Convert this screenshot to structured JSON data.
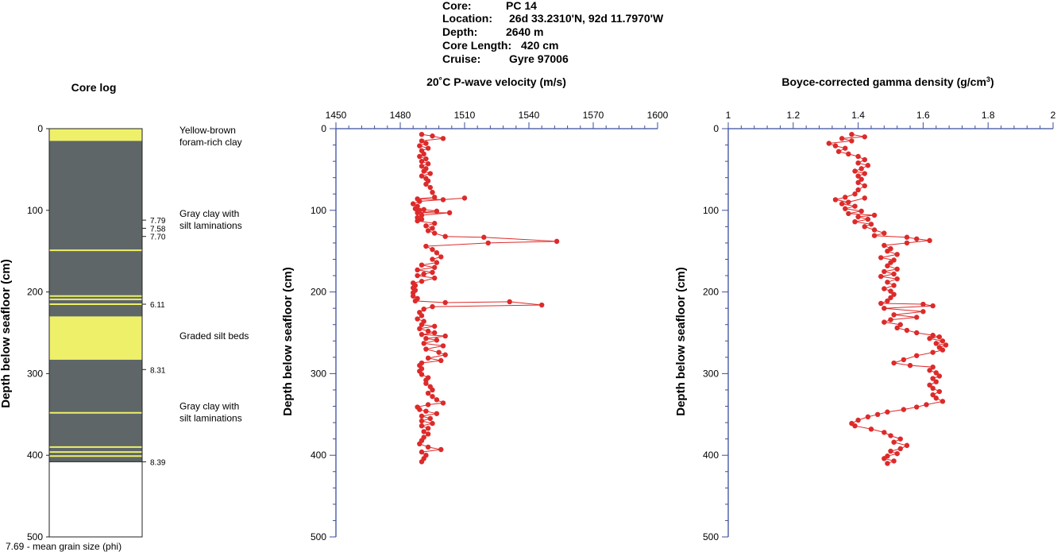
{
  "header": {
    "lines": [
      {
        "key": "Core:",
        "value": "PC 14"
      },
      {
        "key": "Location:",
        "value": "26d 33.2310'N, 92d 11.7970'W"
      },
      {
        "key": "Depth:",
        "value": "2640 m"
      },
      {
        "key": "Core Length:",
        "value": "420 cm"
      },
      {
        "key": "Cruise:",
        "value": "Gyre 97006"
      }
    ]
  },
  "chart_data": [
    {
      "type": "table",
      "title": "Core log",
      "ylabel": "Depth below seafloor (cm)",
      "ylim": [
        0,
        500
      ],
      "yticks": [
        0,
        100,
        200,
        300,
        400,
        500
      ],
      "core_bottom": 408,
      "colors": {
        "clay": "#5f6668",
        "silt": "#eef06a",
        "background": "#ffffff"
      },
      "layers": [
        {
          "from": 0,
          "to": 15,
          "kind": "silt"
        },
        {
          "from": 15,
          "to": 230,
          "kind": "clay"
        },
        {
          "from": 230,
          "to": 283,
          "kind": "silt"
        },
        {
          "from": 283,
          "to": 408,
          "kind": "clay"
        }
      ],
      "thin_silt_lines": [
        149,
        205,
        209,
        215,
        348,
        390,
        396,
        401
      ],
      "descriptions": [
        {
          "depth": 2,
          "lines": [
            "Yellow-brown",
            "foram-rich clay"
          ]
        },
        {
          "depth": 104,
          "lines": [
            "Gray clay with",
            "silt laminations"
          ]
        },
        {
          "depth": 254,
          "lines": [
            "Graded silt beds"
          ]
        },
        {
          "depth": 340,
          "lines": [
            "Gray clay with",
            "silt laminations"
          ]
        }
      ],
      "grain_sizes": [
        {
          "depth": 112,
          "value": "7.79"
        },
        {
          "depth": 122,
          "value": "7.58"
        },
        {
          "depth": 132,
          "value": "7.70"
        },
        {
          "depth": 215,
          "value": "6.11"
        },
        {
          "depth": 295,
          "value": "8.31"
        },
        {
          "depth": 408,
          "value": "8.39"
        }
      ],
      "footnote": "7.69 - mean grain size (phi)"
    },
    {
      "type": "line",
      "title_main": "20˚C P-wave velocity (m/s)",
      "ylabel": "Depth below seafloor (cm)",
      "xlim": [
        1450,
        1600
      ],
      "xticks": [
        1450,
        1480,
        1510,
        1540,
        1570,
        1600
      ],
      "ylim": [
        0,
        500
      ],
      "yticks": [
        0,
        100,
        200,
        300,
        400,
        500
      ],
      "color": "#dd2a2a",
      "axis_color": "#3a4e9e",
      "points": [
        [
          1490,
          7
        ],
        [
          1495,
          9
        ],
        [
          1500,
          12
        ],
        [
          1490,
          15
        ],
        [
          1492,
          18
        ],
        [
          1489,
          21
        ],
        [
          1493,
          24
        ],
        [
          1490,
          27
        ],
        [
          1491,
          31
        ],
        [
          1489,
          34
        ],
        [
          1492,
          37
        ],
        [
          1490,
          40
        ],
        [
          1493,
          43
        ],
        [
          1490,
          46
        ],
        [
          1492,
          49
        ],
        [
          1491,
          52
        ],
        [
          1494,
          55
        ],
        [
          1490,
          58
        ],
        [
          1492,
          61
        ],
        [
          1493,
          64
        ],
        [
          1492,
          68
        ],
        [
          1494,
          72
        ],
        [
          1495,
          78
        ],
        [
          1496,
          84
        ],
        [
          1488,
          86
        ],
        [
          1500,
          87
        ],
        [
          1510,
          85
        ],
        [
          1489,
          89
        ],
        [
          1486,
          92
        ],
        [
          1488,
          95
        ],
        [
          1487,
          98
        ],
        [
          1489,
          100
        ],
        [
          1491,
          99
        ],
        [
          1497,
          101
        ],
        [
          1488,
          103
        ],
        [
          1503,
          103
        ],
        [
          1490,
          106
        ],
        [
          1488,
          109
        ],
        [
          1490,
          111
        ],
        [
          1488,
          113
        ],
        [
          1496,
          116
        ],
        [
          1492,
          119
        ],
        [
          1495,
          122
        ],
        [
          1493,
          125
        ],
        [
          1496,
          128
        ],
        [
          1501,
          132
        ],
        [
          1519,
          133
        ],
        [
          1553,
          138
        ],
        [
          1521,
          140
        ],
        [
          1492,
          144
        ],
        [
          1495,
          148
        ],
        [
          1497,
          152
        ],
        [
          1499,
          157
        ],
        [
          1495,
          160
        ],
        [
          1497,
          164
        ],
        [
          1490,
          167
        ],
        [
          1496,
          170
        ],
        [
          1488,
          173
        ],
        [
          1495,
          176
        ],
        [
          1491,
          178
        ],
        [
          1488,
          180
        ],
        [
          1496,
          183
        ],
        [
          1490,
          187
        ],
        [
          1486,
          189
        ],
        [
          1487,
          192
        ],
        [
          1486,
          195
        ],
        [
          1487,
          198
        ],
        [
          1486,
          201
        ],
        [
          1486,
          205
        ],
        [
          1488,
          208
        ],
        [
          1487,
          211
        ],
        [
          1501,
          213
        ],
        [
          1531,
          212
        ],
        [
          1546,
          216
        ],
        [
          1495,
          218
        ],
        [
          1491,
          221
        ],
        [
          1489,
          225
        ],
        [
          1490,
          229
        ],
        [
          1488,
          233
        ],
        [
          1491,
          236
        ],
        [
          1490,
          240
        ],
        [
          1496,
          242
        ],
        [
          1489,
          245
        ],
        [
          1493,
          248
        ],
        [
          1496,
          250
        ],
        [
          1490,
          252
        ],
        [
          1501,
          254
        ],
        [
          1492,
          257
        ],
        [
          1497,
          259
        ],
        [
          1491,
          263
        ],
        [
          1500,
          266
        ],
        [
          1492,
          270
        ],
        [
          1498,
          274
        ],
        [
          1501,
          277
        ],
        [
          1493,
          281
        ],
        [
          1499,
          284
        ],
        [
          1490,
          287
        ],
        [
          1489,
          290
        ],
        [
          1490,
          294
        ],
        [
          1489,
          297
        ],
        [
          1490,
          301
        ],
        [
          1493,
          305
        ],
        [
          1492,
          308
        ],
        [
          1492,
          312
        ],
        [
          1494,
          316
        ],
        [
          1495,
          320
        ],
        [
          1493,
          324
        ],
        [
          1495,
          328
        ],
        [
          1497,
          332
        ],
        [
          1500,
          336
        ],
        [
          1493,
          338
        ],
        [
          1488,
          341
        ],
        [
          1489,
          344
        ],
        [
          1492,
          346
        ],
        [
          1497,
          349
        ],
        [
          1490,
          352
        ],
        [
          1494,
          355
        ],
        [
          1490,
          358
        ],
        [
          1495,
          361
        ],
        [
          1490,
          364
        ],
        [
          1493,
          367
        ],
        [
          1491,
          371
        ],
        [
          1493,
          374
        ],
        [
          1491,
          378
        ],
        [
          1490,
          382
        ],
        [
          1489,
          386
        ],
        [
          1493,
          390
        ],
        [
          1499,
          393
        ],
        [
          1490,
          396
        ],
        [
          1492,
          400
        ],
        [
          1491,
          404
        ],
        [
          1490,
          408
        ]
      ]
    },
    {
      "type": "line",
      "title_main": "Boyce-corrected gamma density (g/cm",
      "title_sup": "3",
      "title_end": ")",
      "ylabel": "Depth below seafloor (cm)",
      "xlim": [
        1,
        2
      ],
      "xticks": [
        1,
        1.2,
        1.4,
        1.6,
        1.8,
        2
      ],
      "xtick_labels": [
        "1",
        "1.2",
        "1.4",
        "1.6",
        "1.8",
        "2"
      ],
      "ylim": [
        0,
        500
      ],
      "yticks": [
        0,
        100,
        200,
        300,
        400,
        500
      ],
      "color": "#dd2a2a",
      "axis_color": "#3a4e9e",
      "points": [
        [
          1.38,
          7
        ],
        [
          1.42,
          10
        ],
        [
          1.35,
          12
        ],
        [
          1.38,
          15
        ],
        [
          1.31,
          18
        ],
        [
          1.33,
          21
        ],
        [
          1.36,
          24
        ],
        [
          1.34,
          28
        ],
        [
          1.37,
          31
        ],
        [
          1.4,
          34
        ],
        [
          1.42,
          38
        ],
        [
          1.4,
          42
        ],
        [
          1.43,
          45
        ],
        [
          1.41,
          49
        ],
        [
          1.39,
          52
        ],
        [
          1.42,
          55
        ],
        [
          1.4,
          58
        ],
        [
          1.41,
          62
        ],
        [
          1.4,
          66
        ],
        [
          1.42,
          70
        ],
        [
          1.4,
          75
        ],
        [
          1.39,
          80
        ],
        [
          1.36,
          84
        ],
        [
          1.33,
          87
        ],
        [
          1.37,
          90
        ],
        [
          1.42,
          85
        ],
        [
          1.35,
          92
        ],
        [
          1.39,
          95
        ],
        [
          1.36,
          98
        ],
        [
          1.41,
          101
        ],
        [
          1.37,
          104
        ],
        [
          1.45,
          106
        ],
        [
          1.4,
          108
        ],
        [
          1.43,
          111
        ],
        [
          1.39,
          114
        ],
        [
          1.44,
          117
        ],
        [
          1.42,
          120
        ],
        [
          1.45,
          124
        ],
        [
          1.48,
          128
        ],
        [
          1.45,
          131
        ],
        [
          1.55,
          133
        ],
        [
          1.58,
          135
        ],
        [
          1.62,
          137
        ],
        [
          1.55,
          140
        ],
        [
          1.48,
          143
        ],
        [
          1.5,
          147
        ],
        [
          1.49,
          150
        ],
        [
          1.52,
          154
        ],
        [
          1.47,
          158
        ],
        [
          1.51,
          161
        ],
        [
          1.5,
          164
        ],
        [
          1.49,
          168
        ],
        [
          1.52,
          172
        ],
        [
          1.48,
          175
        ],
        [
          1.51,
          178
        ],
        [
          1.47,
          181
        ],
        [
          1.52,
          184
        ],
        [
          1.49,
          188
        ],
        [
          1.51,
          192
        ],
        [
          1.48,
          196
        ],
        [
          1.5,
          199
        ],
        [
          1.51,
          203
        ],
        [
          1.5,
          207
        ],
        [
          1.49,
          211
        ],
        [
          1.47,
          214
        ],
        [
          1.6,
          215
        ],
        [
          1.63,
          217
        ],
        [
          1.48,
          220
        ],
        [
          1.6,
          224
        ],
        [
          1.51,
          228
        ],
        [
          1.58,
          231
        ],
        [
          1.5,
          234
        ],
        [
          1.48,
          237
        ],
        [
          1.53,
          240
        ],
        [
          1.52,
          244
        ],
        [
          1.55,
          247
        ],
        [
          1.58,
          250
        ],
        [
          1.63,
          253
        ],
        [
          1.65,
          255
        ],
        [
          1.62,
          257
        ],
        [
          1.66,
          260
        ],
        [
          1.64,
          263
        ],
        [
          1.67,
          265
        ],
        [
          1.65,
          268
        ],
        [
          1.66,
          271
        ],
        [
          1.63,
          274
        ],
        [
          1.58,
          278
        ],
        [
          1.54,
          283
        ],
        [
          1.51,
          287
        ],
        [
          1.56,
          290
        ],
        [
          1.63,
          292
        ],
        [
          1.62,
          296
        ],
        [
          1.64,
          299
        ],
        [
          1.65,
          303
        ],
        [
          1.63,
          306
        ],
        [
          1.64,
          310
        ],
        [
          1.62,
          314
        ],
        [
          1.63,
          318
        ],
        [
          1.65,
          322
        ],
        [
          1.63,
          326
        ],
        [
          1.64,
          330
        ],
        [
          1.66,
          334
        ],
        [
          1.61,
          338
        ],
        [
          1.58,
          341
        ],
        [
          1.54,
          344
        ],
        [
          1.49,
          347
        ],
        [
          1.46,
          350
        ],
        [
          1.43,
          353
        ],
        [
          1.4,
          357
        ],
        [
          1.38,
          361
        ],
        [
          1.39,
          364
        ],
        [
          1.44,
          368
        ],
        [
          1.48,
          372
        ],
        [
          1.5,
          376
        ],
        [
          1.53,
          380
        ],
        [
          1.51,
          384
        ],
        [
          1.55,
          388
        ],
        [
          1.53,
          392
        ],
        [
          1.5,
          395
        ],
        [
          1.52,
          398
        ],
        [
          1.49,
          401
        ],
        [
          1.48,
          404
        ],
        [
          1.51,
          407
        ],
        [
          1.49,
          410
        ]
      ]
    }
  ]
}
